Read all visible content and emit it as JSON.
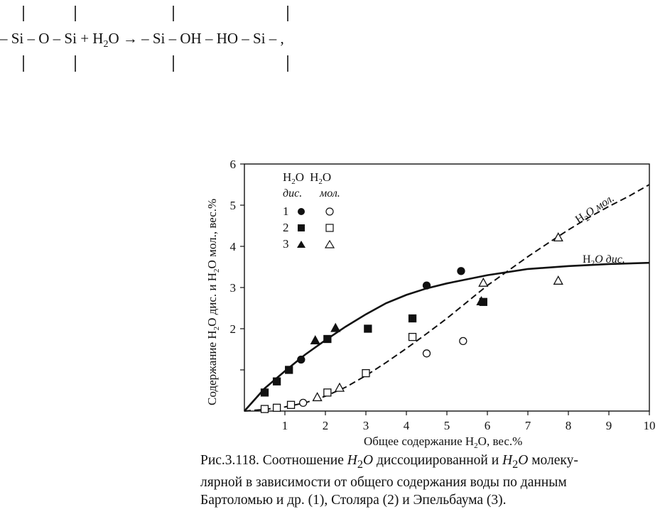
{
  "equation": {
    "t1": "– Si – O – Si + H",
    "t2": "O → – Si – OH – HO – Si – ,",
    "sub": "2"
  },
  "chart_data": {
    "type": "scatter",
    "xlabel_main": "Общее содержание H",
    "xlabel_sub": "2",
    "xlabel_tail": "O, вес.%",
    "ylabel_a": "Содержание H",
    "ylabel_b": "O дис. и H",
    "ylabel_c": "O мол., вес.%",
    "ylabel_sub": "2",
    "xlim": [
      0,
      10
    ],
    "ylim": [
      0,
      6
    ],
    "x_ticks": [
      1,
      2,
      3,
      4,
      5,
      6,
      7,
      8,
      9,
      10
    ],
    "y_ticks": [
      2,
      3,
      4,
      5,
      6
    ],
    "legend": {
      "head_h": "H",
      "head_sub": "2",
      "head_o": "O",
      "col_dis": "дис.",
      "col_mol": "мол.",
      "rows": [
        "1",
        "2",
        "3"
      ]
    },
    "curve_labels": {
      "dis_h": "H",
      "dis_sub": "2",
      "dis_rest": "O дис.",
      "mol_h": "H",
      "mol_sub": "2",
      "mol_rest": "O мол."
    },
    "series": [
      {
        "key": "1-dis",
        "marker": "circle",
        "filled": true,
        "points": [
          [
            1.4,
            1.25
          ],
          [
            4.5,
            3.05
          ],
          [
            5.35,
            3.4
          ]
        ]
      },
      {
        "key": "2-dis",
        "marker": "square",
        "filled": true,
        "points": [
          [
            0.5,
            0.45
          ],
          [
            0.8,
            0.72
          ],
          [
            1.1,
            1.0
          ],
          [
            2.05,
            1.75
          ],
          [
            3.05,
            2.0
          ],
          [
            4.15,
            2.25
          ],
          [
            5.9,
            2.65
          ]
        ]
      },
      {
        "key": "3-dis",
        "marker": "triangle",
        "filled": true,
        "points": [
          [
            1.75,
            1.7
          ],
          [
            2.25,
            2.0
          ],
          [
            5.85,
            2.65
          ]
        ]
      },
      {
        "key": "1-mol",
        "marker": "circle",
        "filled": false,
        "points": [
          [
            1.45,
            0.2
          ],
          [
            4.5,
            1.4
          ],
          [
            5.4,
            1.7
          ]
        ]
      },
      {
        "key": "2-mol",
        "marker": "square",
        "filled": false,
        "points": [
          [
            0.5,
            0.05
          ],
          [
            0.8,
            0.08
          ],
          [
            1.15,
            0.15
          ],
          [
            2.05,
            0.45
          ],
          [
            3.0,
            0.92
          ],
          [
            4.15,
            1.8
          ]
        ]
      },
      {
        "key": "3-mol",
        "marker": "triangle",
        "filled": false,
        "points": [
          [
            1.8,
            0.32
          ],
          [
            2.35,
            0.55
          ],
          [
            5.9,
            3.1
          ],
          [
            7.75,
            4.2
          ],
          [
            7.75,
            3.15
          ]
        ]
      }
    ],
    "curves": [
      {
        "key": "dis",
        "style": "solid",
        "points": [
          [
            0,
            0
          ],
          [
            0.5,
            0.55
          ],
          [
            1.0,
            0.97
          ],
          [
            1.5,
            1.37
          ],
          [
            2.0,
            1.72
          ],
          [
            2.5,
            2.05
          ],
          [
            3.0,
            2.35
          ],
          [
            3.5,
            2.62
          ],
          [
            4.0,
            2.82
          ],
          [
            4.5,
            2.98
          ],
          [
            5.0,
            3.1
          ],
          [
            5.5,
            3.2
          ],
          [
            6.0,
            3.3
          ],
          [
            7.0,
            3.45
          ],
          [
            8.0,
            3.52
          ],
          [
            9.0,
            3.57
          ],
          [
            10.0,
            3.6
          ]
        ]
      },
      {
        "key": "mol",
        "style": "dashed",
        "points": [
          [
            0,
            0
          ],
          [
            0.5,
            0.04
          ],
          [
            1.0,
            0.1
          ],
          [
            1.5,
            0.2
          ],
          [
            2.0,
            0.36
          ],
          [
            2.5,
            0.58
          ],
          [
            3.0,
            0.86
          ],
          [
            3.5,
            1.18
          ],
          [
            4.0,
            1.52
          ],
          [
            4.5,
            1.88
          ],
          [
            5.0,
            2.25
          ],
          [
            5.5,
            2.65
          ],
          [
            6.0,
            3.05
          ],
          [
            6.5,
            3.4
          ],
          [
            7.0,
            3.75
          ],
          [
            7.5,
            4.08
          ],
          [
            8.0,
            4.4
          ],
          [
            8.5,
            4.7
          ],
          [
            9.0,
            4.97
          ],
          [
            9.5,
            5.22
          ],
          [
            10.0,
            5.5
          ]
        ]
      }
    ]
  },
  "caption": {
    "l1a": "Рис.3.118. Соотношение ",
    "l1h1": "H",
    "l1s1": "2",
    "l1o1": "O",
    "l1b": " диссоциированной и ",
    "l1h2": "H",
    "l1s2": "2",
    "l1o2": "O",
    "l1c": " молеку-",
    "l2": "лярной в зависимости от общего содержания воды по данным",
    "l3": "Бартоломью и др. (1), Столяра (2) и Эпельбаума (3)."
  }
}
